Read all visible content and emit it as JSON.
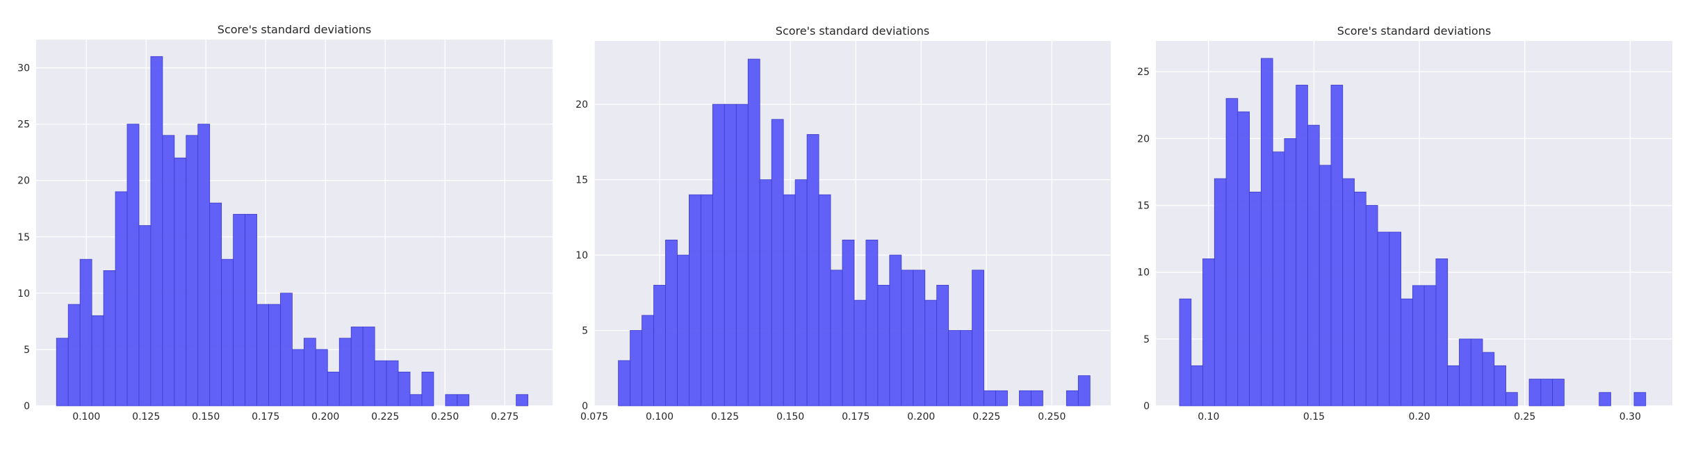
{
  "colors": {
    "background": "#ffffff",
    "plot_background": "#eaeaf2",
    "grid": "#ffffff",
    "bar_fill": "#5a5af7",
    "bar_edge": "#3c3ccc",
    "text": "#262626"
  },
  "chart_data": [
    {
      "type": "bar",
      "subtype": "histogram",
      "title": "Score's standard deviations",
      "xlabel": "",
      "ylabel": "",
      "grid": true,
      "xlim": [
        0.079,
        0.295
      ],
      "ylim": [
        0,
        32.5
      ],
      "xticks": [
        0.1,
        0.125,
        0.15,
        0.175,
        0.2,
        0.225,
        0.25,
        0.275
      ],
      "xtick_labels": [
        "0.100",
        "0.125",
        "0.150",
        "0.175",
        "0.200",
        "0.225",
        "0.250",
        "0.275"
      ],
      "yticks": [
        0,
        5,
        10,
        15,
        20,
        25,
        30
      ],
      "ytick_labels": [
        "0",
        "5",
        "10",
        "15",
        "20",
        "25",
        "30"
      ],
      "bin_start": 0.0875,
      "bin_width": 0.00493,
      "values": [
        6,
        9,
        13,
        8,
        12,
        19,
        25,
        16,
        31,
        24,
        22,
        24,
        25,
        18,
        13,
        17,
        17,
        9,
        9,
        10,
        5,
        6,
        5,
        3,
        6,
        7,
        7,
        4,
        4,
        3,
        1,
        3,
        0,
        1,
        1,
        0,
        0,
        0,
        0,
        1
      ]
    },
    {
      "type": "bar",
      "subtype": "histogram",
      "title": "Score's standard deviations",
      "xlabel": "",
      "ylabel": "",
      "grid": true,
      "xlim": [
        0.075,
        0.2725
      ],
      "ylim": [
        0,
        24.2
      ],
      "xticks": [
        0.075,
        0.1,
        0.125,
        0.15,
        0.175,
        0.2,
        0.225,
        0.25
      ],
      "xtick_labels": [
        "0.075",
        "0.100",
        "0.125",
        "0.150",
        "0.175",
        "0.200",
        "0.225",
        "0.250"
      ],
      "yticks": [
        0,
        5,
        10,
        15,
        20
      ],
      "ytick_labels": [
        "0",
        "5",
        "10",
        "15",
        "20"
      ],
      "bin_start": 0.0842,
      "bin_width": 0.00451,
      "values": [
        3,
        5,
        6,
        8,
        11,
        10,
        14,
        14,
        20,
        20,
        20,
        23,
        15,
        19,
        14,
        15,
        18,
        14,
        9,
        11,
        7,
        11,
        8,
        10,
        9,
        9,
        7,
        8,
        5,
        5,
        9,
        1,
        1,
        0,
        1,
        1,
        0,
        0,
        1,
        2
      ]
    },
    {
      "type": "bar",
      "subtype": "histogram",
      "title": "Score's standard deviations",
      "xlabel": "",
      "ylabel": "",
      "grid": true,
      "xlim": [
        0.075,
        0.32
      ],
      "ylim": [
        0,
        27.3
      ],
      "xticks": [
        0.1,
        0.15,
        0.2,
        0.25,
        0.3
      ],
      "xtick_labels": [
        "0.10",
        "0.15",
        "0.20",
        "0.25",
        "0.30"
      ],
      "yticks": [
        0,
        5,
        10,
        15,
        20,
        25
      ],
      "ytick_labels": [
        "0",
        "5",
        "10",
        "15",
        "20",
        "25"
      ],
      "bin_start": 0.0862,
      "bin_width": 0.00553,
      "values": [
        8,
        3,
        11,
        17,
        23,
        22,
        16,
        26,
        19,
        20,
        24,
        21,
        18,
        24,
        17,
        16,
        15,
        13,
        13,
        8,
        9,
        9,
        11,
        3,
        5,
        5,
        4,
        3,
        1,
        0,
        2,
        2,
        2,
        0,
        0,
        0,
        1,
        0,
        0,
        1
      ]
    }
  ]
}
